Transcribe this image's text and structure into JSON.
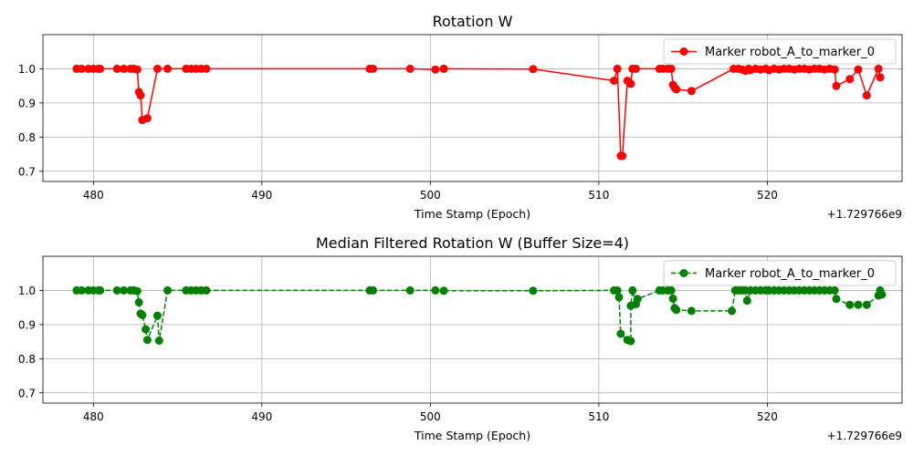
{
  "chart_data": [
    {
      "type": "line",
      "title": "Rotation W",
      "xlabel": "Time Stamp (Epoch)",
      "ylabel": "",
      "x_offset_label": "+1.729766e9",
      "xlim": [
        477,
        528
      ],
      "ylim": [
        0.67,
        1.1
      ],
      "xticks": [
        480,
        490,
        500,
        510,
        520
      ],
      "yticks": [
        0.7,
        0.8,
        0.9,
        1.0
      ],
      "xtick_labels": [
        "480",
        "490",
        "500",
        "510",
        "520"
      ],
      "ytick_labels": [
        "0.7",
        "0.8",
        "0.9",
        "1.0"
      ],
      "grid": true,
      "legend": "top-right",
      "series": [
        {
          "name": "Marker robot_A_to_marker_0",
          "color": "#ff0000",
          "line_style": "solid",
          "marker": "circle",
          "x": [
            479.0,
            479.3,
            479.7,
            480.0,
            480.3,
            480.4,
            481.4,
            481.8,
            482.2,
            482.4,
            482.6,
            482.7,
            482.8,
            482.9,
            483.2,
            483.8,
            484.4,
            485.5,
            485.8,
            486.1,
            486.4,
            486.7,
            496.4,
            496.6,
            498.8,
            500.3,
            500.8,
            506.1,
            510.9,
            511.1,
            511.3,
            511.4,
            511.7,
            511.9,
            512.0,
            512.2,
            513.6,
            513.8,
            514.1,
            514.3,
            514.4,
            514.5,
            514.6,
            515.5,
            518.0,
            518.3,
            518.5,
            518.7,
            518.9,
            519.0,
            519.3,
            519.6,
            519.9,
            520.1,
            520.4,
            520.7,
            521.0,
            521.3,
            521.6,
            521.9,
            522.2,
            522.5,
            522.8,
            523.1,
            523.4,
            523.7,
            524.0,
            524.1,
            524.9,
            525.4,
            525.9,
            526.6,
            526.7
          ],
          "y": [
            1.0,
            1.0,
            1.0,
            1.0,
            1.0,
            1.0,
            1.0,
            1.0,
            1.0,
            1.0,
            0.998,
            0.932,
            0.922,
            0.85,
            0.855,
            1.0,
            1.0,
            1.0,
            1.0,
            1.0,
            1.0,
            1.0,
            1.0,
            1.0,
            1.0,
            0.998,
            1.0,
            0.999,
            0.965,
            1.0,
            0.745,
            0.745,
            0.965,
            0.956,
            1.0,
            1.0,
            1.0,
            1.0,
            1.0,
            1.0,
            0.953,
            0.945,
            0.94,
            0.935,
            1.0,
            1.0,
            0.998,
            0.994,
            1.0,
            0.996,
            1.0,
            0.998,
            1.0,
            0.996,
            1.0,
            0.998,
            1.0,
            1.0,
            0.998,
            1.0,
            1.0,
            0.998,
            1.0,
            1.0,
            0.998,
            1.0,
            0.998,
            0.95,
            0.97,
            0.998,
            0.922,
            1.0,
            0.975
          ]
        }
      ]
    },
    {
      "type": "line",
      "title": "Median Filtered Rotation W (Buffer Size=4)",
      "xlabel": "Time Stamp (Epoch)",
      "ylabel": "",
      "x_offset_label": "+1.729766e9",
      "xlim": [
        477,
        528
      ],
      "ylim": [
        0.67,
        1.1
      ],
      "xticks": [
        480,
        490,
        500,
        510,
        520
      ],
      "yticks": [
        0.7,
        0.8,
        0.9,
        1.0
      ],
      "xtick_labels": [
        "480",
        "490",
        "500",
        "510",
        "520"
      ],
      "ytick_labels": [
        "0.7",
        "0.8",
        "0.9",
        "1.0"
      ],
      "grid": true,
      "legend": "top-right",
      "series": [
        {
          "name": "Marker robot_A_to_marker_0",
          "color": "#008000",
          "line_style": "dashed",
          "marker": "circle",
          "x": [
            479.0,
            479.3,
            479.7,
            480.0,
            480.3,
            480.4,
            481.4,
            481.8,
            482.2,
            482.4,
            482.6,
            482.7,
            482.8,
            482.9,
            483.1,
            483.2,
            483.8,
            483.9,
            484.4,
            485.5,
            485.8,
            486.1,
            486.4,
            486.7,
            496.4,
            496.6,
            498.8,
            500.3,
            500.8,
            506.1,
            510.9,
            511.1,
            511.2,
            511.3,
            511.7,
            511.9,
            511.9,
            512.0,
            512.2,
            512.3,
            513.6,
            513.8,
            514.1,
            514.3,
            514.4,
            514.5,
            514.6,
            515.5,
            517.9,
            518.1,
            518.3,
            518.5,
            518.7,
            518.8,
            519.0,
            519.3,
            519.6,
            519.9,
            520.1,
            520.4,
            520.7,
            521.0,
            521.3,
            521.6,
            521.9,
            522.2,
            522.5,
            522.8,
            523.1,
            523.4,
            523.7,
            524.0,
            524.1,
            524.9,
            525.4,
            525.9,
            526.6,
            526.7,
            526.8
          ],
          "y": [
            1.0,
            1.0,
            1.0,
            1.0,
            1.0,
            1.0,
            1.0,
            1.0,
            1.0,
            1.0,
            0.998,
            0.965,
            0.932,
            0.928,
            0.886,
            0.855,
            0.926,
            0.853,
            1.0,
            1.0,
            1.0,
            1.0,
            1.0,
            1.0,
            1.0,
            1.0,
            1.0,
            1.0,
            0.999,
            0.999,
            1.0,
            1.0,
            0.98,
            0.873,
            0.855,
            0.852,
            0.955,
            1.0,
            0.96,
            0.975,
            1.0,
            1.0,
            1.0,
            1.0,
            0.976,
            0.948,
            0.943,
            0.94,
            0.94,
            1.0,
            1.0,
            1.0,
            1.0,
            0.97,
            1.0,
            1.0,
            1.0,
            1.0,
            1.0,
            1.0,
            1.0,
            1.0,
            1.0,
            1.0,
            1.0,
            1.0,
            1.0,
            1.0,
            1.0,
            1.0,
            1.0,
            1.0,
            0.975,
            0.958,
            0.958,
            0.958,
            0.985,
            1.0,
            0.988
          ]
        }
      ]
    }
  ]
}
